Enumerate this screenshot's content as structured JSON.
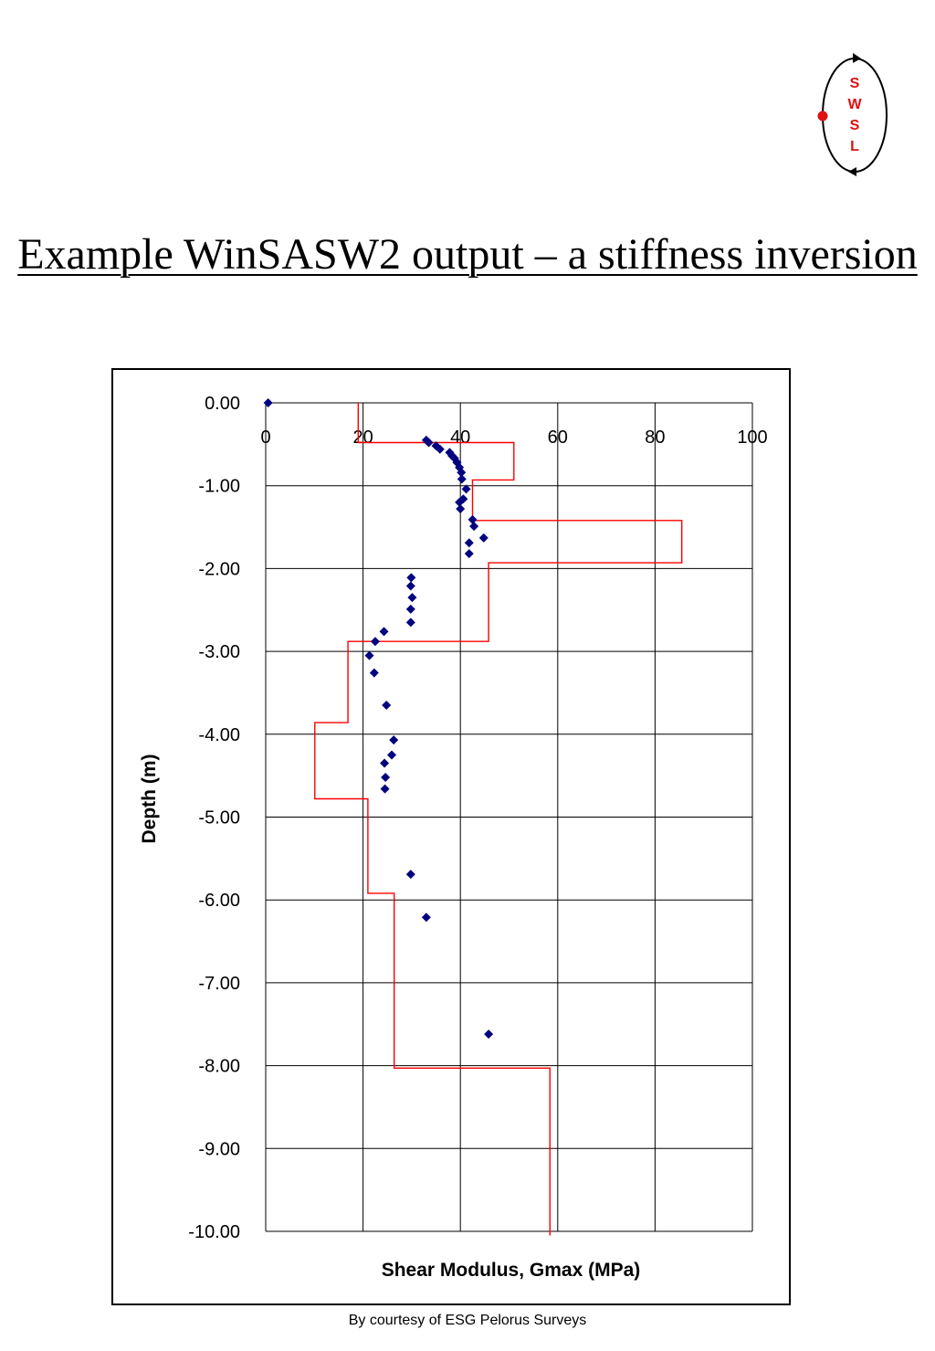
{
  "logo": {
    "letters": [
      "S",
      "W",
      "S",
      "L"
    ],
    "dot_color": "#e01010",
    "letter_color": "#e01010"
  },
  "title": "Example WinSASW2 output – a stiffness inversion",
  "footer": "By courtesy of ESG Pelorus Surveys",
  "colors": {
    "points": "#000080",
    "profile": "#ff0000",
    "grid": "#000000"
  },
  "chart_data": {
    "type": "scatter",
    "xlabel": "Shear Modulus, Gmax (MPa)",
    "ylabel": "Depth (m)",
    "xlim": [
      0,
      100
    ],
    "ylim": [
      -10,
      0
    ],
    "x_ticks": [
      "0",
      "20",
      "40",
      "60",
      "80",
      "100"
    ],
    "y_ticks": [
      "0.00",
      "-1.00",
      "-2.00",
      "-3.00",
      "-4.00",
      "-5.00",
      "-6.00",
      "-7.00",
      "-8.00",
      "-9.00",
      "-10.00"
    ],
    "x_axis_position": "top",
    "grid": true,
    "series": [
      {
        "type": "scatter",
        "marker": "diamond",
        "points": [
          [
            0.5,
            0.0
          ],
          [
            33.0,
            -0.45
          ],
          [
            33.5,
            -0.48
          ],
          [
            35.0,
            -0.52
          ],
          [
            35.8,
            -0.56
          ],
          [
            37.8,
            -0.6
          ],
          [
            38.3,
            -0.64
          ],
          [
            38.8,
            -0.67
          ],
          [
            39.3,
            -0.72
          ],
          [
            39.8,
            -0.78
          ],
          [
            40.2,
            -0.84
          ],
          [
            40.3,
            -0.92
          ],
          [
            41.2,
            -1.04
          ],
          [
            40.6,
            -1.16
          ],
          [
            39.8,
            -1.2
          ],
          [
            40.0,
            -1.28
          ],
          [
            42.5,
            -1.41
          ],
          [
            42.8,
            -1.49
          ],
          [
            44.8,
            -1.63
          ],
          [
            41.8,
            -1.69
          ],
          [
            41.8,
            -1.82
          ],
          [
            29.9,
            -2.11
          ],
          [
            29.8,
            -2.21
          ],
          [
            30.1,
            -2.35
          ],
          [
            29.8,
            -2.49
          ],
          [
            29.8,
            -2.65
          ],
          [
            24.3,
            -2.76
          ],
          [
            22.5,
            -2.88
          ],
          [
            21.3,
            -3.05
          ],
          [
            22.3,
            -3.26
          ],
          [
            24.8,
            -3.65
          ],
          [
            26.3,
            -4.07
          ],
          [
            25.9,
            -4.25
          ],
          [
            24.4,
            -4.35
          ],
          [
            24.6,
            -4.52
          ],
          [
            24.5,
            -4.66
          ],
          [
            29.8,
            -5.69
          ],
          [
            33.0,
            -6.21
          ],
          [
            45.8,
            -7.62
          ]
        ]
      },
      {
        "type": "line",
        "shape": "step",
        "points": [
          [
            19.0,
            0.0
          ],
          [
            19.0,
            -0.48
          ],
          [
            51.0,
            -0.48
          ],
          [
            51.0,
            -0.93
          ],
          [
            42.5,
            -0.93
          ],
          [
            42.5,
            -1.42
          ],
          [
            85.5,
            -1.42
          ],
          [
            85.5,
            -1.93
          ],
          [
            45.8,
            -1.93
          ],
          [
            45.8,
            -2.88
          ],
          [
            16.9,
            -2.88
          ],
          [
            16.9,
            -3.86
          ],
          [
            10.1,
            -3.86
          ],
          [
            10.1,
            -4.78
          ],
          [
            21.0,
            -4.78
          ],
          [
            21.0,
            -5.92
          ],
          [
            26.4,
            -5.92
          ],
          [
            26.4,
            -8.03
          ],
          [
            58.4,
            -8.03
          ],
          [
            58.4,
            -10.05
          ]
        ]
      }
    ]
  }
}
